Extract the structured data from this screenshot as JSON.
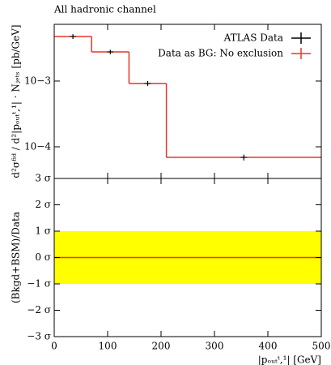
{
  "chart_data": [
    {
      "type": "step",
      "title": "All hadronic channel",
      "ylabel": "d²σᶠⁱᵈ / d²|pₒᵤₜᵗ,¹| · Nⱼₑₜₛ [pb/GeV]",
      "xlim": [
        0,
        500
      ],
      "xticks": [
        0,
        100,
        200,
        300,
        400,
        500
      ],
      "ylim": [
        3.3e-05,
        0.0073
      ],
      "log_y": true,
      "yticks": [
        {
          "value": 0.001,
          "label": "10−3"
        },
        {
          "value": 0.0001,
          "label": "10−4"
        }
      ],
      "legend": "upper right",
      "series": [
        {
          "name": "ATLAS Data",
          "color": "#000000",
          "x": [
            35,
            105,
            175,
            355
          ],
          "values": [
            0.00477,
            0.00278,
            0.00092,
            6.9e-05
          ],
          "errors": [
            0.0004,
            0.00022,
            8e-05,
            7e-06
          ]
        },
        {
          "name": "Data as BG: No exclusion",
          "color": "#e8362a",
          "bins": [
            0,
            70,
            140,
            210,
            500
          ],
          "values": [
            0.00477,
            0.00278,
            0.00092,
            6.9e-05
          ]
        }
      ]
    },
    {
      "type": "ratio",
      "ylabel": "(Bkgd+BSM)/Data",
      "xlabel": "|pₒᵤₜᵗ,¹| [GeV]",
      "xlim": [
        0,
        500
      ],
      "xticks": [
        0,
        100,
        200,
        300,
        400,
        500
      ],
      "ylim": [
        -3,
        3
      ],
      "yticks": [
        {
          "value": -3,
          "label": "−3 σ"
        },
        {
          "value": -2,
          "label": "−2 σ"
        },
        {
          "value": -1,
          "label": "−1 σ"
        },
        {
          "value": 0,
          "label": "0 σ"
        },
        {
          "value": 1,
          "label": "1 σ"
        },
        {
          "value": 2,
          "label": "2 σ"
        },
        {
          "value": 3,
          "label": "3 σ"
        }
      ],
      "band": [
        -1,
        1
      ],
      "band_color": "#ffff00",
      "line_value": 0,
      "line_color": "#e8362a"
    }
  ]
}
